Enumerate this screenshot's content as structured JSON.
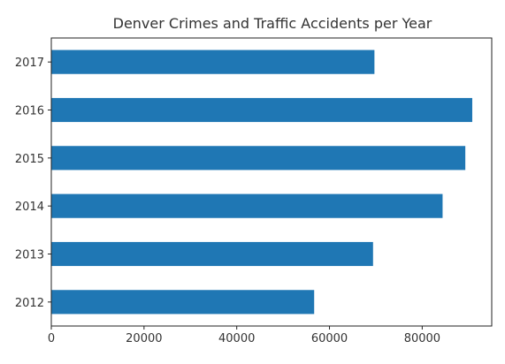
{
  "chart_data": {
    "type": "bar",
    "orientation": "horizontal",
    "title": "Denver Crimes and Traffic Accidents per Year",
    "xlabel": "",
    "ylabel": "",
    "categories": [
      "2012",
      "2013",
      "2014",
      "2015",
      "2016",
      "2017"
    ],
    "values": [
      56700,
      69400,
      84400,
      89300,
      90800,
      69700
    ],
    "xlim": [
      0,
      95000
    ],
    "x_ticks": [
      0,
      20000,
      40000,
      60000,
      80000
    ],
    "x_tick_labels": [
      "0",
      "20000",
      "40000",
      "60000",
      "80000"
    ],
    "grid": false,
    "legend": "none",
    "bar_color": "#1f77b4"
  }
}
